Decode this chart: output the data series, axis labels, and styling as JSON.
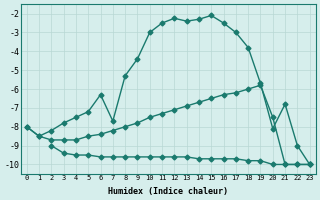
{
  "line1_x": [
    0,
    1,
    2,
    3,
    4,
    5,
    6,
    7,
    8,
    9,
    10,
    11,
    12,
    13,
    14,
    15,
    16,
    17,
    18,
    19,
    20,
    21,
    22,
    23
  ],
  "line1_y": [
    -8.0,
    -8.5,
    -8.2,
    -7.8,
    -7.5,
    -7.2,
    -6.3,
    -7.7,
    -5.3,
    -4.4,
    -3.0,
    -2.5,
    -2.25,
    -2.4,
    -2.3,
    -2.1,
    -2.5,
    -3.0,
    -3.8,
    -5.7,
    -8.1,
    -6.8,
    -9.0,
    -10.0
  ],
  "line2_x": [
    0,
    1,
    2,
    3,
    4,
    5,
    6,
    7,
    8,
    9,
    10,
    11,
    12,
    13,
    14,
    15,
    16,
    17,
    18,
    19,
    20,
    21,
    22,
    23
  ],
  "line2_y": [
    -8.0,
    -8.5,
    -8.7,
    -8.7,
    -8.7,
    -8.5,
    -8.4,
    -8.2,
    -8.0,
    -7.8,
    -7.5,
    -7.3,
    -7.1,
    -6.9,
    -6.7,
    -6.5,
    -6.3,
    -6.2,
    -6.0,
    -5.8,
    -7.5,
    -10.0,
    -10.0,
    -10.0
  ],
  "line3_x": [
    2,
    3,
    4,
    5,
    6,
    7,
    8,
    9,
    10,
    11,
    12,
    13,
    14,
    15,
    16,
    17,
    18,
    19,
    20,
    21,
    22,
    23
  ],
  "line3_y": [
    -9.0,
    -9.4,
    -9.5,
    -9.5,
    -9.6,
    -9.6,
    -9.6,
    -9.6,
    -9.6,
    -9.6,
    -9.6,
    -9.6,
    -9.7,
    -9.7,
    -9.7,
    -9.7,
    -9.8,
    -9.8,
    -10.0,
    -10.0,
    -10.0,
    -10.0
  ],
  "line_color": "#1a7a6e",
  "bg_color": "#d6eeec",
  "grid_color": "#b8d8d4",
  "xlabel": "Humidex (Indice chaleur)",
  "xlim": [
    -0.5,
    23.5
  ],
  "ylim": [
    -10.5,
    -1.5
  ],
  "yticks": [
    -2,
    -3,
    -4,
    -5,
    -6,
    -7,
    -8,
    -9,
    -10
  ],
  "xticks": [
    0,
    1,
    2,
    3,
    4,
    5,
    6,
    7,
    8,
    9,
    10,
    11,
    12,
    13,
    14,
    15,
    16,
    17,
    18,
    19,
    20,
    21,
    22,
    23
  ],
  "marker": "D",
  "markersize": 2.5,
  "linewidth": 1.0,
  "tick_fontsize": 5.0,
  "xlabel_fontsize": 6.0
}
